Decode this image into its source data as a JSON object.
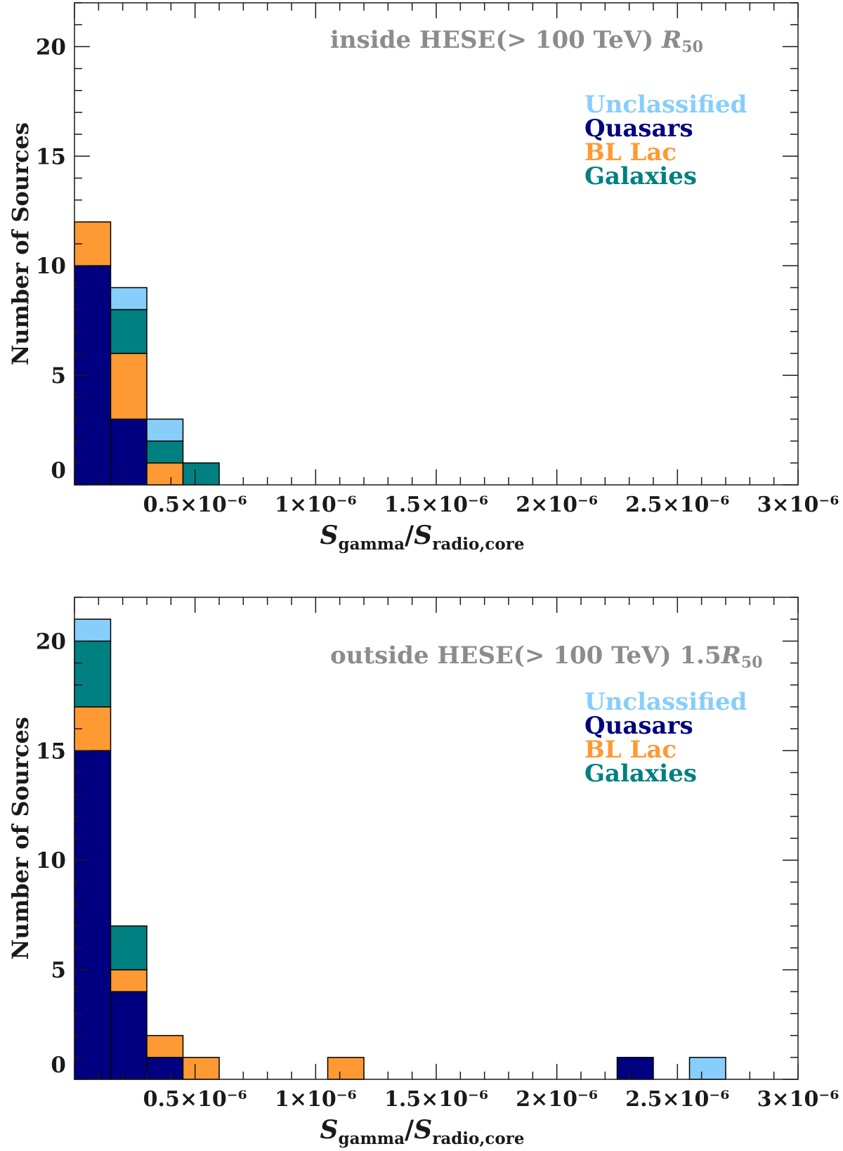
{
  "colors": {
    "Unclassified": "#87CEFA",
    "Quasars": "#000080",
    "BL Lac": "#FF9933",
    "Galaxies": "#008080"
  },
  "chart_data": [
    {
      "type": "bar",
      "stacked": true,
      "annotation": {
        "main": "inside HESE(> 100 TeV) ",
        "sym": "R",
        "sub": "50"
      },
      "xlabel": {
        "s1": "S",
        "sub1": "gamma",
        "sep": "/",
        "s2": "S",
        "sub2": "radio,core"
      },
      "ylabel": "Number of Sources",
      "xlim": [
        0,
        3e-06
      ],
      "ylim": [
        0,
        22
      ],
      "bin_width": 1.5e-07,
      "y_ticks": [
        "0",
        "5",
        "10",
        "15",
        "20"
      ],
      "x_ticks": [
        "0.5×10⁻⁶",
        "1×10⁻⁶",
        "1.5×10⁻⁶",
        "2×10⁻⁶",
        "2.5×10⁻⁶",
        "3×10⁻⁶"
      ],
      "legend": [
        "Unclassified",
        "Quasars",
        "BL Lac",
        "Galaxies"
      ],
      "legend_position": "top-right",
      "bins": [
        {
          "x0": 0.0,
          "x1": 1.5e-07,
          "Quasars": 10,
          "BL Lac": 2,
          "Galaxies": 0,
          "Unclassified": 0
        },
        {
          "x0": 1.5e-07,
          "x1": 3e-07,
          "Quasars": 3,
          "BL Lac": 3,
          "Galaxies": 2,
          "Unclassified": 1
        },
        {
          "x0": 3e-07,
          "x1": 4.5e-07,
          "Quasars": 0,
          "BL Lac": 1,
          "Galaxies": 1,
          "Unclassified": 1
        },
        {
          "x0": 4.5e-07,
          "x1": 6e-07,
          "Quasars": 0,
          "BL Lac": 0,
          "Galaxies": 1,
          "Unclassified": 0
        }
      ]
    },
    {
      "type": "bar",
      "stacked": true,
      "annotation": {
        "main": "outside HESE(> 100 TeV) 1.5",
        "sym": "R",
        "sub": "50"
      },
      "xlabel": {
        "s1": "S",
        "sub1": "gamma",
        "sep": "/",
        "s2": "S",
        "sub2": "radio,core"
      },
      "ylabel": "Number of Sources",
      "xlim": [
        0,
        3e-06
      ],
      "ylim": [
        0,
        22
      ],
      "bin_width": 1.5e-07,
      "y_ticks": [
        "0",
        "5",
        "10",
        "15",
        "20"
      ],
      "x_ticks": [
        "0.5×10⁻⁶",
        "1×10⁻⁶",
        "1.5×10⁻⁶",
        "2×10⁻⁶",
        "2.5×10⁻⁶",
        "3×10⁻⁶"
      ],
      "legend": [
        "Unclassified",
        "Quasars",
        "BL Lac",
        "Galaxies"
      ],
      "legend_position": "top-right",
      "bins": [
        {
          "x0": 0.0,
          "x1": 1.5e-07,
          "Quasars": 15,
          "BL Lac": 2,
          "Galaxies": 3,
          "Unclassified": 1
        },
        {
          "x0": 1.5e-07,
          "x1": 3e-07,
          "Quasars": 4,
          "BL Lac": 1,
          "Galaxies": 2,
          "Unclassified": 0
        },
        {
          "x0": 3e-07,
          "x1": 4.5e-07,
          "Quasars": 1,
          "BL Lac": 1,
          "Galaxies": 0,
          "Unclassified": 0
        },
        {
          "x0": 4.5e-07,
          "x1": 6e-07,
          "Quasars": 0,
          "BL Lac": 1,
          "Galaxies": 0,
          "Unclassified": 0
        },
        {
          "x0": 1.05e-06,
          "x1": 1.2e-06,
          "Quasars": 0,
          "BL Lac": 1,
          "Galaxies": 0,
          "Unclassified": 0
        },
        {
          "x0": 2.25e-06,
          "x1": 2.4e-06,
          "Quasars": 1,
          "BL Lac": 0,
          "Galaxies": 0,
          "Unclassified": 0
        },
        {
          "x0": 2.55e-06,
          "x1": 2.7e-06,
          "Quasars": 0,
          "BL Lac": 0,
          "Galaxies": 0,
          "Unclassified": 1
        }
      ]
    }
  ]
}
